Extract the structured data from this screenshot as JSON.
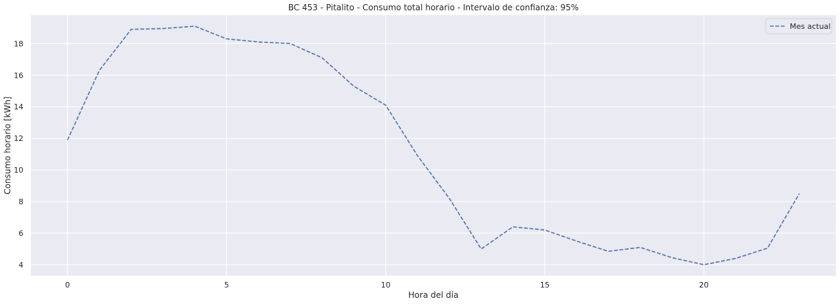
{
  "chart_data": {
    "type": "line",
    "title": "BC 453 - Pitalito - Consumo total horario - Intervalo de confianza: 95%",
    "xlabel": "Hora del día",
    "ylabel": "Consumo horario [kWh]",
    "x": [
      0,
      1,
      2,
      3,
      4,
      5,
      6,
      7,
      8,
      9,
      10,
      11,
      12,
      13,
      14,
      15,
      16,
      17,
      18,
      19,
      20,
      21,
      22,
      23
    ],
    "xlim": [
      -1.15,
      24.15
    ],
    "ylim": [
      3.3,
      19.8
    ],
    "xticks": [
      0,
      5,
      10,
      15,
      20
    ],
    "yticks": [
      4,
      6,
      8,
      10,
      12,
      14,
      16,
      18
    ],
    "grid": true,
    "legend_position": "top-right",
    "series": [
      {
        "name": "Mes actual",
        "color": "#4c72b0",
        "line_style": "dashed",
        "values": [
          11.9,
          16.3,
          18.9,
          18.95,
          19.1,
          18.3,
          18.1,
          18.0,
          17.1,
          15.3,
          14.1,
          10.9,
          8.2,
          5.0,
          6.4,
          6.2,
          5.5,
          4.85,
          5.1,
          4.45,
          4.0,
          4.4,
          5.05,
          8.5
        ]
      }
    ],
    "colors": {
      "plot_background": "#eaeaf2",
      "grid": "#ffffff"
    }
  }
}
